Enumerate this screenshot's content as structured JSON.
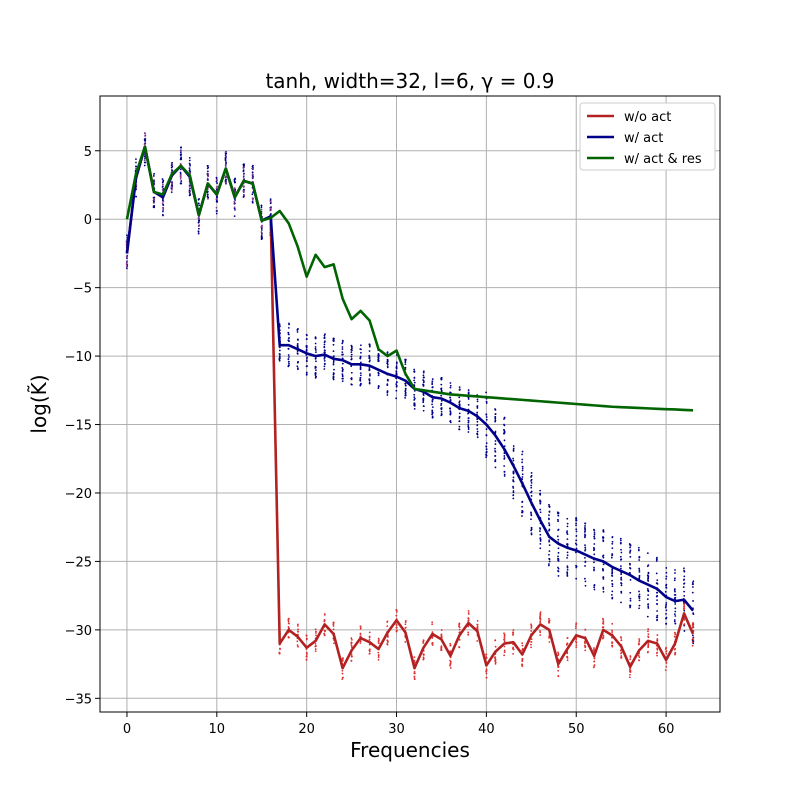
{
  "chart_data": {
    "type": "line",
    "title": "tanh, width=32, l=6, γ = 0.9",
    "xlabel": "Frequencies",
    "ylabel": "log(K̃)",
    "xlim": [
      -3,
      66
    ],
    "ylim": [
      -36,
      9
    ],
    "grid": true,
    "legend_position": "top-right",
    "xticks": [
      0,
      10,
      20,
      30,
      40,
      50,
      60
    ],
    "yticks": [
      5,
      0,
      -5,
      -10,
      -15,
      -20,
      -25,
      -30,
      -35
    ],
    "x_start": 0,
    "series": [
      {
        "name": "w/o act",
        "color": "#b22222",
        "values": [
          -2.5,
          3.0,
          5.3,
          2.0,
          1.6,
          3.2,
          3.9,
          3.1,
          0.3,
          2.6,
          1.8,
          3.7,
          1.6,
          2.8,
          2.6,
          -0.1,
          0.2,
          -31.0,
          -30.0,
          -30.5,
          -31.3,
          -30.8,
          -29.6,
          -30.3,
          -32.8,
          -31.5,
          -30.6,
          -30.9,
          -31.4,
          -30.2,
          -29.3,
          -30.2,
          -32.8,
          -31.3,
          -30.3,
          -30.7,
          -31.9,
          -30.4,
          -29.5,
          -30.1,
          -32.6,
          -31.6,
          -31.0,
          -30.9,
          -31.8,
          -30.4,
          -29.6,
          -30.0,
          -32.5,
          -31.4,
          -30.4,
          -30.6,
          -31.9,
          -30.0,
          -30.4,
          -31.2,
          -32.7,
          -31.5,
          -30.8,
          -31.0,
          -32.2,
          -31.0,
          -28.8,
          -30.3
        ]
      },
      {
        "name": "w/ act",
        "color": "#00008b",
        "values": [
          -2.5,
          3.0,
          5.3,
          2.0,
          1.6,
          3.2,
          3.9,
          3.1,
          0.3,
          2.6,
          1.8,
          3.7,
          1.6,
          2.8,
          2.6,
          -0.1,
          0.2,
          -9.2,
          -9.2,
          -9.5,
          -9.8,
          -10.0,
          -9.9,
          -10.2,
          -10.3,
          -10.6,
          -10.6,
          -10.7,
          -11.0,
          -11.3,
          -11.5,
          -11.8,
          -12.4,
          -12.6,
          -13.0,
          -13.1,
          -13.4,
          -13.8,
          -14.0,
          -14.4,
          -15.0,
          -15.8,
          -16.8,
          -18.0,
          -19.3,
          -20.7,
          -22.0,
          -23.2,
          -23.7,
          -24.0,
          -24.2,
          -24.5,
          -24.8,
          -25.0,
          -25.4,
          -25.7,
          -26.0,
          -26.4,
          -26.7,
          -27.0,
          -27.6,
          -27.9,
          -27.8,
          -28.6
        ]
      },
      {
        "name": "w/ act & res",
        "color": "#006400",
        "values": [
          0.0,
          3.3,
          5.3,
          2.0,
          1.8,
          3.3,
          3.9,
          3.2,
          0.3,
          2.6,
          1.8,
          3.7,
          1.6,
          2.8,
          2.6,
          -0.1,
          0.1,
          0.6,
          -0.3,
          -2.0,
          -4.2,
          -2.6,
          -3.5,
          -3.3,
          -5.8,
          -7.3,
          -6.7,
          -7.4,
          -9.5,
          -10.0,
          -9.6,
          -11.3,
          -12.4,
          -12.5,
          -12.6,
          -12.7,
          -12.8,
          -12.85,
          -12.9,
          -12.95,
          -13.0,
          -13.05,
          -13.1,
          -13.15,
          -13.2,
          -13.25,
          -13.3,
          -13.35,
          -13.4,
          -13.45,
          -13.5,
          -13.55,
          -13.6,
          -13.65,
          -13.7,
          -13.73,
          -13.76,
          -13.79,
          -13.82,
          -13.85,
          -13.88,
          -13.9,
          -13.93,
          -13.96
        ]
      }
    ]
  }
}
